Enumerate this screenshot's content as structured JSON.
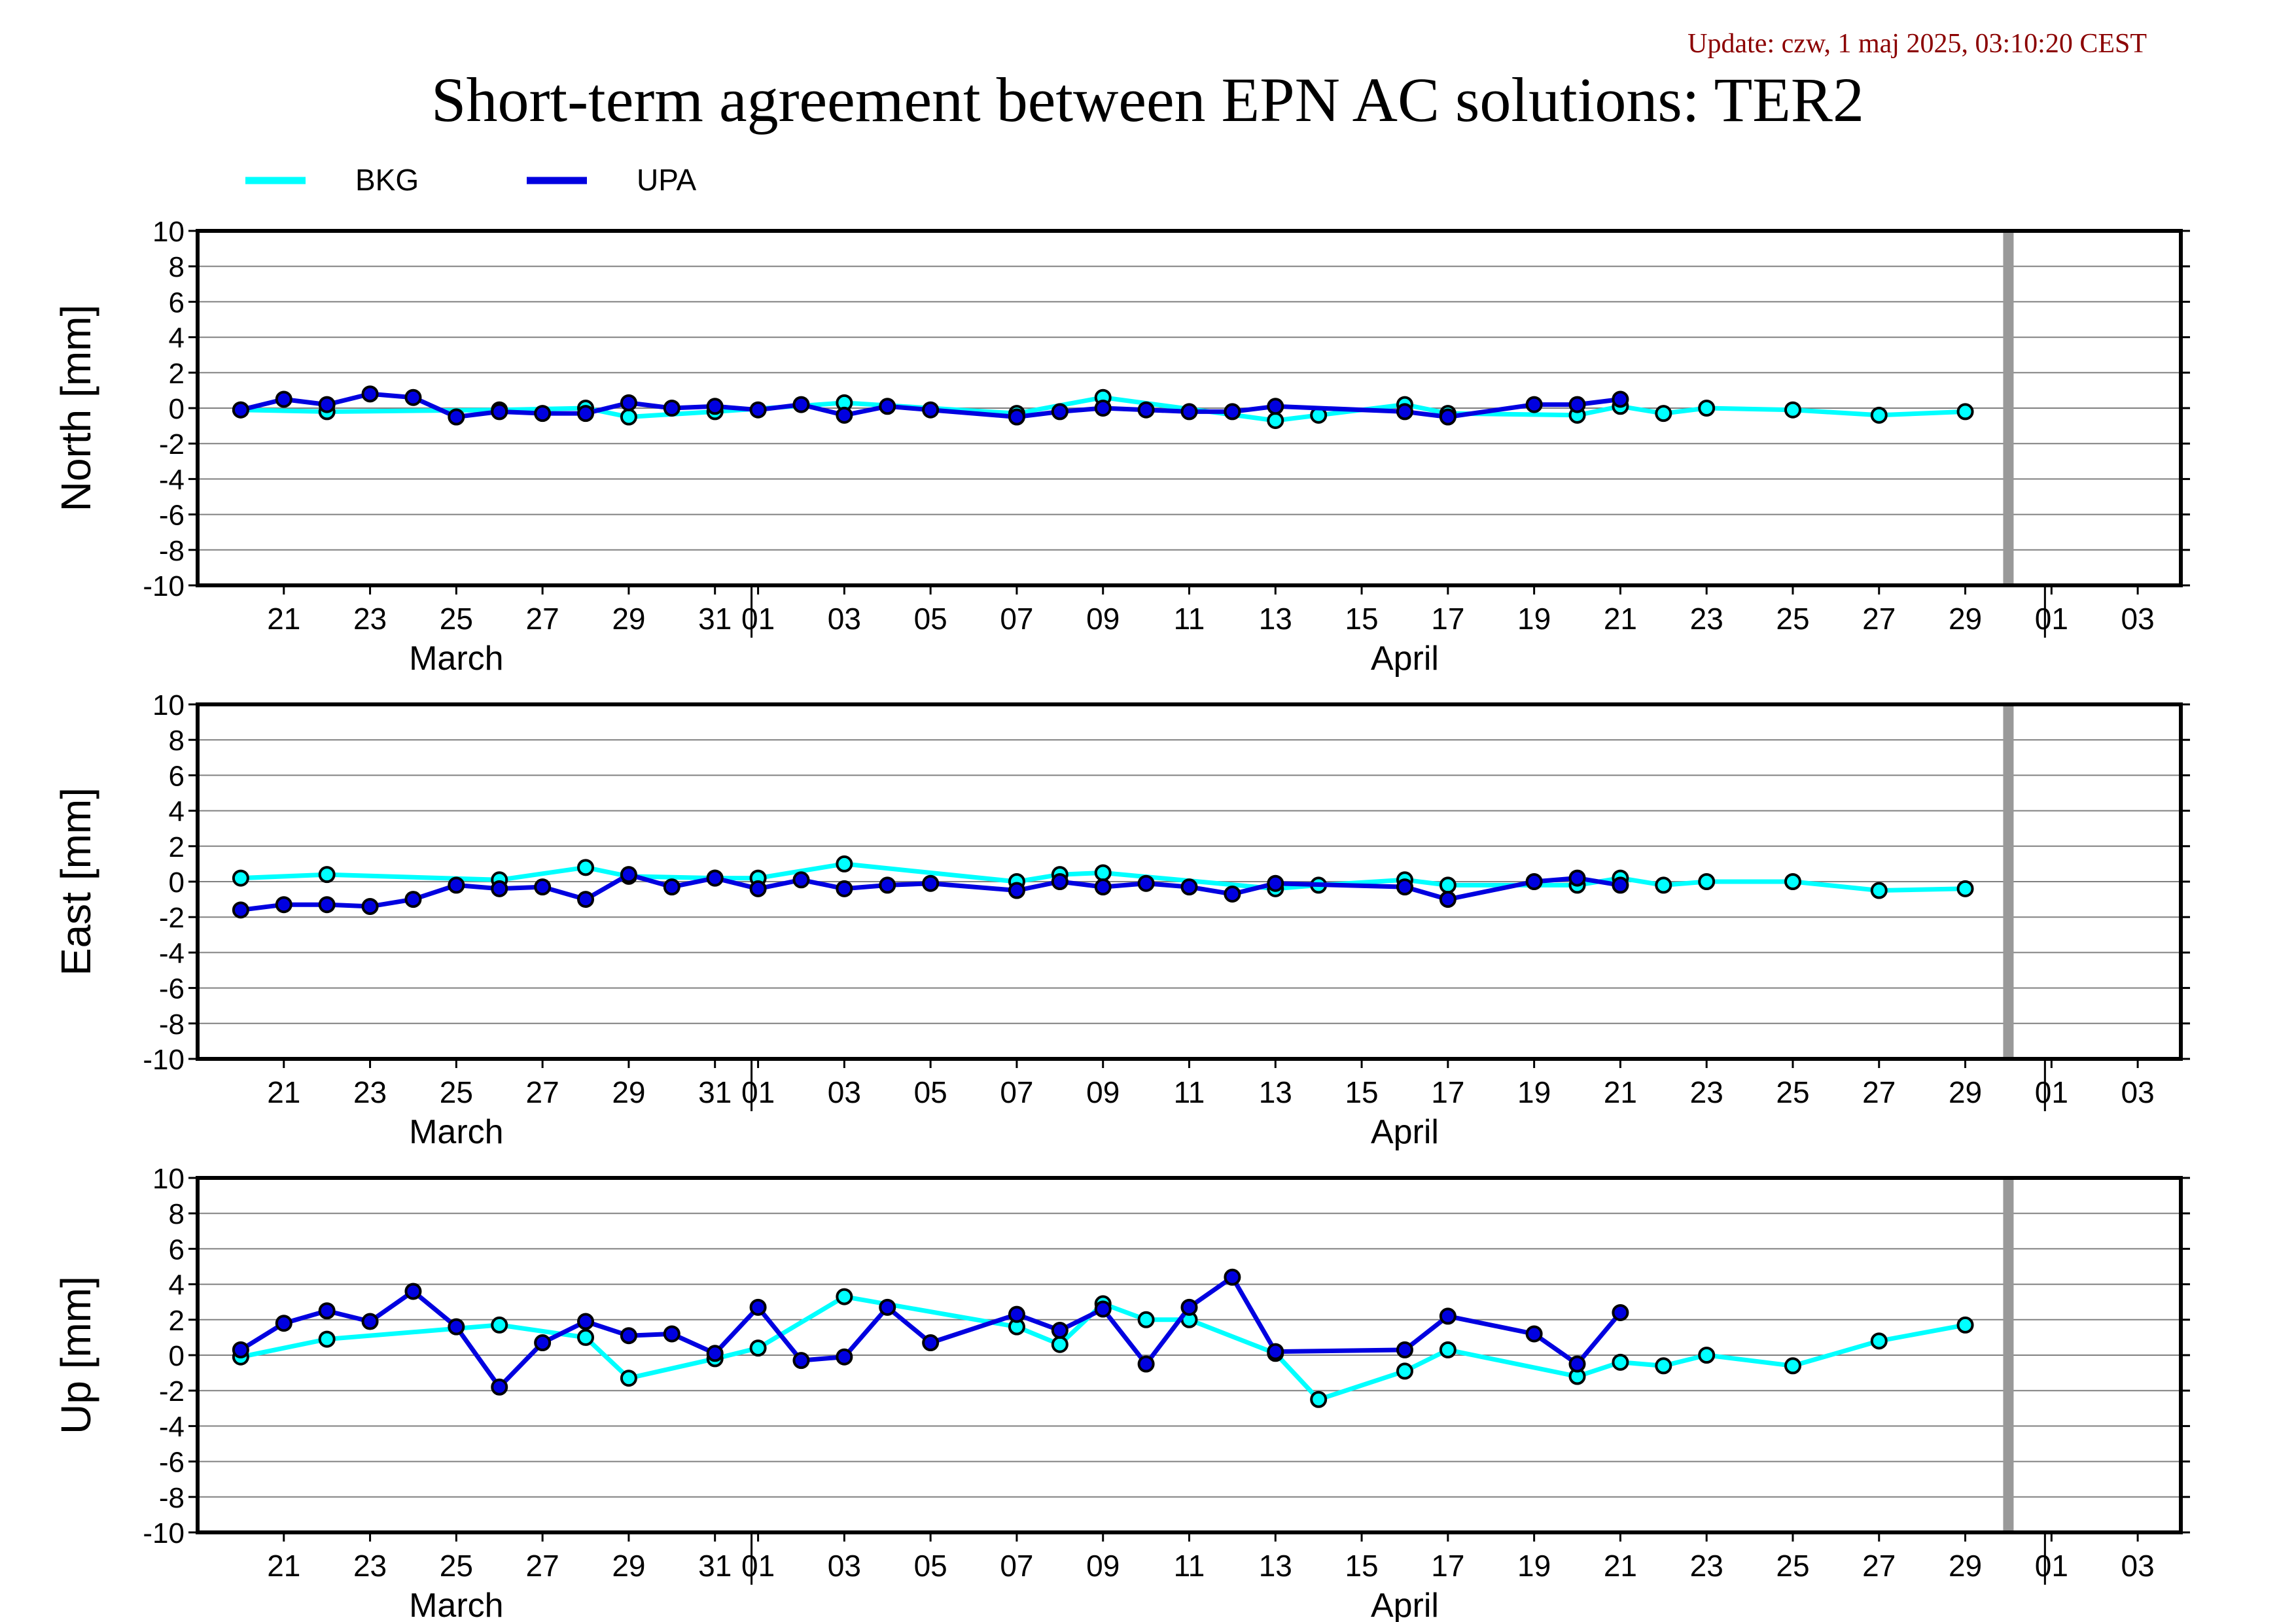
{
  "update_text": "Update: czw, 1 maj 2025, 03:10:20 CEST",
  "title": "Short-term agreement between EPN AC solutions: TER2",
  "colors": {
    "BKG": "#00FFFF",
    "UPA": "#0000E0",
    "update_text": "#8B0000",
    "today_marker": "#999999",
    "grid": "#808080"
  },
  "legend": [
    {
      "name": "BKG",
      "color": "#00FFFF"
    },
    {
      "name": "UPA",
      "color": "#0000E0"
    }
  ],
  "x_axis": {
    "range": [
      "2025-03-19",
      "2025-05-04"
    ],
    "tick_labels": [
      {
        "date": "2025-03-21",
        "label": "21"
      },
      {
        "date": "2025-03-23",
        "label": "23"
      },
      {
        "date": "2025-03-25",
        "label": "25"
      },
      {
        "date": "2025-03-27",
        "label": "27"
      },
      {
        "date": "2025-03-29",
        "label": "29"
      },
      {
        "date": "2025-03-31",
        "label": "31"
      },
      {
        "date": "2025-04-01",
        "label": "01"
      },
      {
        "date": "2025-04-03",
        "label": "03"
      },
      {
        "date": "2025-04-05",
        "label": "05"
      },
      {
        "date": "2025-04-07",
        "label": "07"
      },
      {
        "date": "2025-04-09",
        "label": "09"
      },
      {
        "date": "2025-04-11",
        "label": "11"
      },
      {
        "date": "2025-04-13",
        "label": "13"
      },
      {
        "date": "2025-04-15",
        "label": "15"
      },
      {
        "date": "2025-04-17",
        "label": "17"
      },
      {
        "date": "2025-04-19",
        "label": "19"
      },
      {
        "date": "2025-04-21",
        "label": "21"
      },
      {
        "date": "2025-04-23",
        "label": "23"
      },
      {
        "date": "2025-04-25",
        "label": "25"
      },
      {
        "date": "2025-04-27",
        "label": "27"
      },
      {
        "date": "2025-04-29",
        "label": "29"
      },
      {
        "date": "2025-05-01",
        "label": "01"
      },
      {
        "date": "2025-05-03",
        "label": "03"
      }
    ],
    "month_labels": [
      {
        "date": "2025-03-25",
        "label": "March"
      },
      {
        "date": "2025-04-16",
        "label": "April"
      }
    ],
    "month_boundaries": [
      "2025-04-01",
      "2025-05-01"
    ],
    "today_marker": "2025-04-30"
  },
  "chart_data": [
    {
      "type": "line",
      "ylabel": "North [mm]",
      "ylim": [
        -10,
        10
      ],
      "yticks": [
        10,
        8,
        6,
        4,
        2,
        0,
        -2,
        -4,
        -6,
        -8,
        -10
      ],
      "grid": true,
      "series": [
        {
          "name": "BKG",
          "x": [
            "2025-03-20",
            "2025-03-22",
            "2025-03-26",
            "2025-03-28",
            "2025-03-29",
            "2025-03-31",
            "2025-04-03",
            "2025-04-07",
            "2025-04-09",
            "2025-04-13",
            "2025-04-14",
            "2025-04-16",
            "2025-04-17",
            "2025-04-20",
            "2025-04-21",
            "2025-04-22",
            "2025-04-23",
            "2025-04-25",
            "2025-04-27",
            "2025-04-29"
          ],
          "y": [
            -0.1,
            -0.2,
            -0.1,
            0.0,
            -0.5,
            -0.2,
            0.3,
            -0.3,
            0.6,
            -0.7,
            -0.4,
            0.2,
            -0.3,
            -0.4,
            0.1,
            -0.3,
            0.0,
            -0.1,
            -0.4,
            -0.2
          ]
        },
        {
          "name": "UPA",
          "x": [
            "2025-03-20",
            "2025-03-21",
            "2025-03-22",
            "2025-03-23",
            "2025-03-24",
            "2025-03-25",
            "2025-03-26",
            "2025-03-27",
            "2025-03-28",
            "2025-03-29",
            "2025-03-30",
            "2025-03-31",
            "2025-04-01",
            "2025-04-02",
            "2025-04-03",
            "2025-04-04",
            "2025-04-05",
            "2025-04-07",
            "2025-04-08",
            "2025-04-09",
            "2025-04-10",
            "2025-04-11",
            "2025-04-12",
            "2025-04-13",
            "2025-04-16",
            "2025-04-17",
            "2025-04-19",
            "2025-04-20",
            "2025-04-21"
          ],
          "y": [
            -0.1,
            0.5,
            0.2,
            0.8,
            0.6,
            -0.5,
            -0.2,
            -0.3,
            -0.3,
            0.3,
            0.0,
            0.1,
            -0.1,
            0.2,
            -0.4,
            0.1,
            -0.1,
            -0.5,
            -0.2,
            0.0,
            -0.1,
            -0.2,
            -0.2,
            0.1,
            -0.2,
            -0.5,
            0.2,
            0.2,
            0.5
          ]
        }
      ]
    },
    {
      "type": "line",
      "ylabel": "East [mm]",
      "ylim": [
        -10,
        10
      ],
      "yticks": [
        10,
        8,
        6,
        4,
        2,
        0,
        -2,
        -4,
        -6,
        -8,
        -10
      ],
      "grid": true,
      "series": [
        {
          "name": "BKG",
          "x": [
            "2025-03-20",
            "2025-03-22",
            "2025-03-26",
            "2025-03-28",
            "2025-03-29",
            "2025-03-31",
            "2025-04-01",
            "2025-04-03",
            "2025-04-07",
            "2025-04-08",
            "2025-04-09",
            "2025-04-13",
            "2025-04-14",
            "2025-04-16",
            "2025-04-17",
            "2025-04-20",
            "2025-04-21",
            "2025-04-22",
            "2025-04-23",
            "2025-04-25",
            "2025-04-27",
            "2025-04-29"
          ],
          "y": [
            0.2,
            0.4,
            0.1,
            0.8,
            0.3,
            0.2,
            0.2,
            1.0,
            0.0,
            0.4,
            0.5,
            -0.4,
            -0.2,
            0.1,
            -0.2,
            -0.2,
            0.2,
            -0.2,
            0.0,
            0.0,
            -0.5,
            -0.4
          ]
        },
        {
          "name": "UPA",
          "x": [
            "2025-03-20",
            "2025-03-21",
            "2025-03-22",
            "2025-03-23",
            "2025-03-24",
            "2025-03-25",
            "2025-03-26",
            "2025-03-27",
            "2025-03-28",
            "2025-03-29",
            "2025-03-30",
            "2025-03-31",
            "2025-04-01",
            "2025-04-02",
            "2025-04-03",
            "2025-04-04",
            "2025-04-05",
            "2025-04-07",
            "2025-04-08",
            "2025-04-09",
            "2025-04-10",
            "2025-04-11",
            "2025-04-12",
            "2025-04-13",
            "2025-04-16",
            "2025-04-17",
            "2025-04-19",
            "2025-04-20",
            "2025-04-21"
          ],
          "y": [
            -1.6,
            -1.3,
            -1.3,
            -1.4,
            -1.0,
            -0.2,
            -0.4,
            -0.3,
            -1.0,
            0.4,
            -0.3,
            0.2,
            -0.4,
            0.1,
            -0.4,
            -0.2,
            -0.1,
            -0.5,
            0.0,
            -0.3,
            -0.1,
            -0.3,
            -0.7,
            -0.1,
            -0.3,
            -1.0,
            0.0,
            0.2,
            -0.2
          ]
        }
      ]
    },
    {
      "type": "line",
      "ylabel": "Up [mm]",
      "ylim": [
        -10,
        10
      ],
      "yticks": [
        10,
        8,
        6,
        4,
        2,
        0,
        -2,
        -4,
        -6,
        -8,
        -10
      ],
      "grid": true,
      "series": [
        {
          "name": "BKG",
          "x": [
            "2025-03-20",
            "2025-03-22",
            "2025-03-26",
            "2025-03-28",
            "2025-03-29",
            "2025-03-31",
            "2025-04-01",
            "2025-04-03",
            "2025-04-07",
            "2025-04-08",
            "2025-04-09",
            "2025-04-10",
            "2025-04-11",
            "2025-04-13",
            "2025-04-14",
            "2025-04-16",
            "2025-04-17",
            "2025-04-20",
            "2025-04-21",
            "2025-04-22",
            "2025-04-23",
            "2025-04-25",
            "2025-04-27",
            "2025-04-29"
          ],
          "y": [
            -0.1,
            0.9,
            1.7,
            1.0,
            -1.3,
            -0.2,
            0.4,
            3.3,
            1.6,
            0.6,
            2.9,
            2.0,
            2.0,
            0.1,
            -2.5,
            -0.9,
            0.3,
            -1.2,
            -0.4,
            -0.6,
            0.0,
            -0.6,
            0.8,
            1.7
          ]
        },
        {
          "name": "UPA",
          "x": [
            "2025-03-20",
            "2025-03-21",
            "2025-03-22",
            "2025-03-23",
            "2025-03-24",
            "2025-03-25",
            "2025-03-26",
            "2025-03-27",
            "2025-03-28",
            "2025-03-29",
            "2025-03-30",
            "2025-03-31",
            "2025-04-01",
            "2025-04-02",
            "2025-04-03",
            "2025-04-04",
            "2025-04-05",
            "2025-04-07",
            "2025-04-08",
            "2025-04-09",
            "2025-04-10",
            "2025-04-11",
            "2025-04-12",
            "2025-04-13",
            "2025-04-16",
            "2025-04-17",
            "2025-04-19",
            "2025-04-20",
            "2025-04-21"
          ],
          "y": [
            0.3,
            1.8,
            2.5,
            1.9,
            3.6,
            1.6,
            -1.8,
            0.7,
            1.9,
            1.1,
            1.2,
            0.1,
            2.7,
            -0.3,
            -0.1,
            2.7,
            0.7,
            2.3,
            1.4,
            2.6,
            -0.5,
            2.7,
            4.4,
            0.2,
            0.3,
            2.2,
            1.2,
            -0.5,
            2.4
          ]
        }
      ]
    }
  ]
}
